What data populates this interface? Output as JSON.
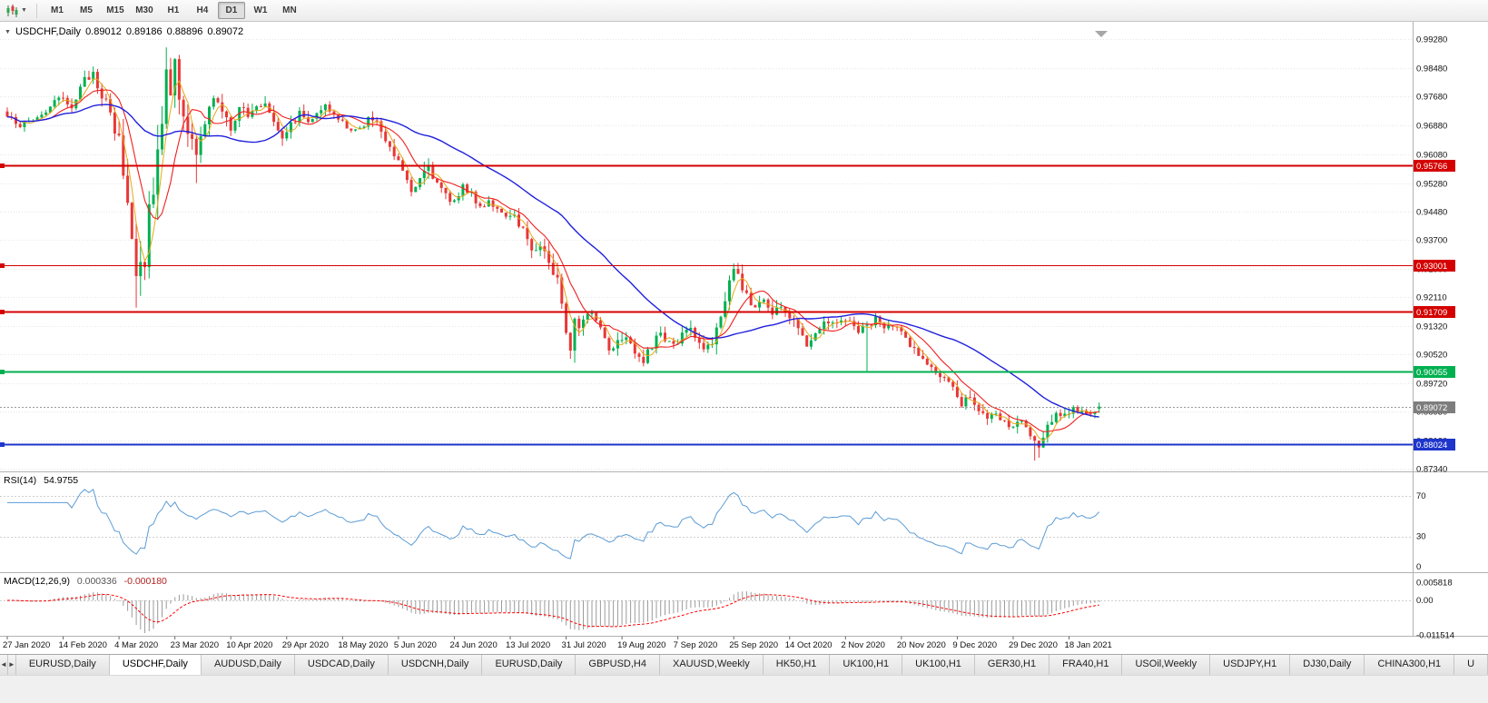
{
  "toolbar": {
    "chart_type_icon": "candlestick-chart-icon",
    "dropdown_icon": "chevron-down-icon",
    "timeframes": [
      {
        "label": "M1",
        "active": false
      },
      {
        "label": "M5",
        "active": false
      },
      {
        "label": "M15",
        "active": false
      },
      {
        "label": "M30",
        "active": false
      },
      {
        "label": "H1",
        "active": false
      },
      {
        "label": "H4",
        "active": false
      },
      {
        "label": "D1",
        "active": true
      },
      {
        "label": "W1",
        "active": false
      },
      {
        "label": "MN",
        "active": false
      }
    ]
  },
  "chart": {
    "symbol_label": "USDCHF,Daily",
    "ohlc": {
      "open": "0.89012",
      "high": "0.89186",
      "low": "0.88896",
      "close": "0.89072"
    },
    "price_axis": [
      "0.99280",
      "0.98480",
      "0.97680",
      "0.96880",
      "0.96080",
      "0.95280",
      "0.94480",
      "0.93700",
      "0.92900",
      "0.92110",
      "0.91320",
      "0.90520",
      "0.89720",
      "0.88930",
      "0.88130",
      "0.87340"
    ],
    "levels": [
      {
        "value": 0.95766,
        "label": "0.95766",
        "color": "#d40000",
        "width": 2
      },
      {
        "value": 0.93001,
        "label": "0.93001",
        "color": "#d40000",
        "width": 1.3
      },
      {
        "value": 0.91709,
        "label": "0.91709",
        "color": "#d40000",
        "width": 2
      },
      {
        "value": 0.90055,
        "label": "0.90055",
        "color": "#00b050",
        "width": 2
      },
      {
        "value": 0.88024,
        "label": "0.88024",
        "color": "#1f35cc",
        "width": 2
      }
    ],
    "current_price": {
      "value": 0.89072,
      "label": "0.89072",
      "color": "#7d7d7d"
    },
    "date_labels": [
      "27 Jan 2020",
      "14 Feb 2020",
      "4 Mar 2020",
      "23 Mar 2020",
      "10 Apr 2020",
      "29 Apr 2020",
      "18 May 2020",
      "5 Jun 2020",
      "24 Jun 2020",
      "13 Jul 2020",
      "31 Jul 2020",
      "19 Aug 2020",
      "7 Sep 2020",
      "25 Sep 2020",
      "14 Oct 2020",
      "2 Nov 2020",
      "20 Nov 2020",
      "9 Dec 2020",
      "29 Dec 2020",
      "18 Jan 2021"
    ]
  },
  "rsi_panel": {
    "name": "RSI(14)",
    "value": "54.9755",
    "axis": [
      "70",
      "30",
      "0"
    ],
    "color": "#5b9bd5"
  },
  "macd_panel": {
    "name": "MACD(12,26,9)",
    "main": "0.000336",
    "signal": "-0.000180",
    "axis": [
      "0.005818",
      "0.00",
      "-0.011514"
    ],
    "bar_color": "#9b9b9b",
    "signal_color": "#ff0000"
  },
  "chart_data": {
    "type": "candlestick",
    "symbol": "USDCHF",
    "timeframe": "Daily",
    "bars": 255,
    "price_range": [
      0.8727,
      0.9956
    ],
    "colors": {
      "up": "#00b050",
      "down": "#e83737"
    },
    "close_anchors": [
      [
        0,
        0.9712
      ],
      [
        3,
        0.969
      ],
      [
        6,
        0.9703
      ],
      [
        9,
        0.9728
      ],
      [
        12,
        0.9762
      ],
      [
        15,
        0.9745
      ],
      [
        18,
        0.981
      ],
      [
        20,
        0.9838
      ],
      [
        22,
        0.9775
      ],
      [
        24,
        0.9712
      ],
      [
        26,
        0.9638
      ],
      [
        28,
        0.948
      ],
      [
        30,
        0.9278
      ],
      [
        31,
        0.934
      ],
      [
        32,
        0.931
      ],
      [
        33,
        0.9465
      ],
      [
        34,
        0.953
      ],
      [
        35,
        0.962
      ],
      [
        36,
        0.97
      ],
      [
        37,
        0.9868
      ],
      [
        38,
        0.9795
      ],
      [
        39,
        0.9845
      ],
      [
        40,
        0.979
      ],
      [
        42,
        0.968
      ],
      [
        44,
        0.959
      ],
      [
        46,
        0.97
      ],
      [
        48,
        0.9768
      ],
      [
        50,
        0.972
      ],
      [
        52,
        0.9682
      ],
      [
        54,
        0.9745
      ],
      [
        56,
        0.9712
      ],
      [
        58,
        0.9738
      ],
      [
        60,
        0.9752
      ],
      [
        62,
        0.9705
      ],
      [
        64,
        0.9662
      ],
      [
        66,
        0.969
      ],
      [
        68,
        0.9722
      ],
      [
        70,
        0.97
      ],
      [
        72,
        0.973
      ],
      [
        74,
        0.9742
      ],
      [
        76,
        0.9712
      ],
      [
        78,
        0.97
      ],
      [
        80,
        0.9668
      ],
      [
        82,
        0.9678
      ],
      [
        84,
        0.9708
      ],
      [
        86,
        0.9692
      ],
      [
        88,
        0.9655
      ],
      [
        90,
        0.9612
      ],
      [
        92,
        0.957
      ],
      [
        94,
        0.9512
      ],
      [
        96,
        0.9548
      ],
      [
        98,
        0.9582
      ],
      [
        100,
        0.9522
      ],
      [
        102,
        0.949
      ],
      [
        104,
        0.9478
      ],
      [
        106,
        0.9525
      ],
      [
        108,
        0.9492
      ],
      [
        110,
        0.9462
      ],
      [
        112,
        0.9482
      ],
      [
        114,
        0.9455
      ],
      [
        116,
        0.9425
      ],
      [
        118,
        0.9438
      ],
      [
        120,
        0.94
      ],
      [
        122,
        0.9345
      ],
      [
        124,
        0.936
      ],
      [
        126,
        0.9308
      ],
      [
        128,
        0.9255
      ],
      [
        129,
        0.9205
      ],
      [
        130,
        0.9125
      ],
      [
        131,
        0.9085
      ],
      [
        132,
        0.9152
      ],
      [
        134,
        0.9138
      ],
      [
        136,
        0.9172
      ],
      [
        138,
        0.9128
      ],
      [
        140,
        0.9068
      ],
      [
        142,
        0.9092
      ],
      [
        144,
        0.911
      ],
      [
        146,
        0.9062
      ],
      [
        148,
        0.9035
      ],
      [
        150,
        0.9072
      ],
      [
        152,
        0.9115
      ],
      [
        154,
        0.9082
      ],
      [
        156,
        0.9078
      ],
      [
        158,
        0.913
      ],
      [
        160,
        0.9102
      ],
      [
        162,
        0.9065
      ],
      [
        164,
        0.9092
      ],
      [
        166,
        0.9148
      ],
      [
        168,
        0.9252
      ],
      [
        169,
        0.9295
      ],
      [
        170,
        0.926
      ],
      [
        172,
        0.9215
      ],
      [
        174,
        0.9182
      ],
      [
        176,
        0.9212
      ],
      [
        178,
        0.9162
      ],
      [
        180,
        0.9192
      ],
      [
        182,
        0.9152
      ],
      [
        184,
        0.9132
      ],
      [
        186,
        0.9085
      ],
      [
        188,
        0.9112
      ],
      [
        190,
        0.9152
      ],
      [
        192,
        0.9135
      ],
      [
        194,
        0.9152
      ],
      [
        196,
        0.9142
      ],
      [
        198,
        0.9118
      ],
      [
        200,
        0.9132
      ],
      [
        202,
        0.9152
      ],
      [
        204,
        0.9122
      ],
      [
        206,
        0.9132
      ],
      [
        208,
        0.9112
      ],
      [
        210,
        0.9082
      ],
      [
        212,
        0.9052
      ],
      [
        214,
        0.9022
      ],
      [
        216,
        0.9002
      ],
      [
        218,
        0.8982
      ],
      [
        220,
        0.8952
      ],
      [
        222,
        0.8918
      ],
      [
        224,
        0.8945
      ],
      [
        226,
        0.8895
      ],
      [
        228,
        0.8868
      ],
      [
        230,
        0.8885
      ],
      [
        232,
        0.8862
      ],
      [
        234,
        0.8848
      ],
      [
        236,
        0.8872
      ],
      [
        238,
        0.8822
      ],
      [
        240,
        0.8792
      ],
      [
        241,
        0.8815
      ],
      [
        242,
        0.8845
      ],
      [
        243,
        0.8872
      ],
      [
        244,
        0.8895
      ],
      [
        246,
        0.8882
      ],
      [
        248,
        0.8905
      ],
      [
        250,
        0.8888
      ],
      [
        252,
        0.8878
      ],
      [
        253,
        0.8898
      ],
      [
        254,
        0.89072
      ]
    ],
    "key_candles": {
      "20": {
        "high": 0.9852
      },
      "30": {
        "low": 0.9182
      },
      "37": {
        "high": 0.9905
      },
      "44": {
        "low": 0.9528
      },
      "131": {
        "low": 0.904
      },
      "169": {
        "high": 0.9305
      },
      "200": {
        "low": 0.9001
      },
      "239": {
        "low": 0.8757
      },
      "240": {
        "low": 0.8765
      },
      "254": {
        "open": 0.89012,
        "high": 0.89186,
        "low": 0.88896,
        "close": 0.89072
      }
    },
    "overlays": [
      {
        "name": "ma-fast-gold",
        "period": 4,
        "color": "#e6a817",
        "width": 1
      },
      {
        "name": "ma-medium-red",
        "period": 9,
        "color": "#f01f1f",
        "width": 1.1
      },
      {
        "name": "ma-slow-blue",
        "period": 34,
        "color": "#2020dd",
        "width": 1.4
      }
    ],
    "indicators": [
      {
        "name": "RSI",
        "period": 14
      },
      {
        "name": "MACD",
        "fast": 12,
        "slow": 26,
        "signal": 9
      }
    ]
  },
  "tabs": {
    "scroll_left": "◄",
    "scroll_right": "►",
    "items": [
      {
        "label": "EURUSD,Daily",
        "active": false
      },
      {
        "label": "USDCHF,Daily",
        "active": true
      },
      {
        "label": "AUDUSD,Daily",
        "active": false
      },
      {
        "label": "USDCAD,Daily",
        "active": false
      },
      {
        "label": "USDCNH,Daily",
        "active": false
      },
      {
        "label": "EURUSD,Daily",
        "active": false
      },
      {
        "label": "GBPUSD,H4",
        "active": false
      },
      {
        "label": "XAUUSD,Weekly",
        "active": false
      },
      {
        "label": "HK50,H1",
        "active": false
      },
      {
        "label": "UK100,H1",
        "active": false
      },
      {
        "label": "UK100,H1",
        "active": false
      },
      {
        "label": "GER30,H1",
        "active": false
      },
      {
        "label": "FRA40,H1",
        "active": false
      },
      {
        "label": "USOil,Weekly",
        "active": false
      },
      {
        "label": "USDJPY,H1",
        "active": false
      },
      {
        "label": "DJ30,Daily",
        "active": false
      },
      {
        "label": "CHINA300,H1",
        "active": false
      },
      {
        "label": "U",
        "active": false
      }
    ]
  }
}
